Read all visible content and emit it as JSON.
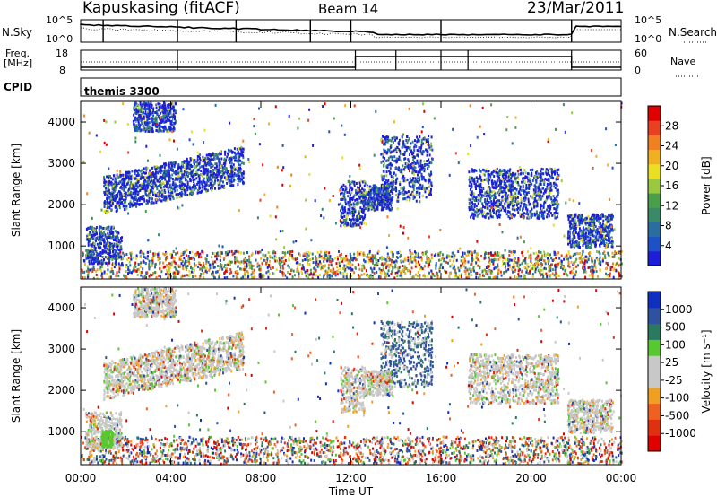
{
  "header": {
    "station": "Kapuskasing (fitACF)",
    "beam": "Beam 14",
    "date": "23/Mar/2011"
  },
  "top_panel": {
    "left_label": "N.Sky",
    "right_label": "N.Search",
    "left_ticks": [
      "10^5",
      "10^0"
    ],
    "right_ticks": [
      "10^5",
      "10^0"
    ]
  },
  "freq_panel": {
    "left_label_line1": "Freq.",
    "left_label_line2": "[MHz]",
    "left_ticks": [
      "18",
      "8"
    ],
    "right_label": "Nave",
    "right_ticks": [
      "60",
      "0"
    ]
  },
  "cpid_panel": {
    "label": "CPID",
    "value": "themis 3300"
  },
  "chart_data": [
    {
      "type": "heatmap",
      "name": "power",
      "ylabel": "Slant Range [km]",
      "yticks": [
        1000,
        2000,
        3000,
        4000
      ],
      "ylim": [
        200,
        4500
      ],
      "xlim": [
        0,
        24
      ],
      "colorbar": {
        "label": "Power [dB]",
        "ticks": [
          "4",
          "8",
          "12",
          "16",
          "20",
          "24",
          "28"
        ],
        "colors": [
          "#1e1ed8",
          "#1e50c8",
          "#2a6ea0",
          "#3a8a6a",
          "#4aa04a",
          "#9ac840",
          "#e8e020",
          "#f0b020",
          "#f08020",
          "#e84020",
          "#e00000"
        ]
      }
    },
    {
      "type": "heatmap",
      "name": "velocity",
      "ylabel": "Slant Range [km]",
      "xlabel": "Time UT",
      "yticks": [
        1000,
        2000,
        3000,
        4000
      ],
      "ylim": [
        200,
        4500
      ],
      "xlim": [
        0,
        24
      ],
      "xticks": [
        "00:00",
        "04:00",
        "08:00",
        "12:00",
        "16:00",
        "20:00",
        "00:00"
      ],
      "colorbar": {
        "label": "Velocity [m s⁻¹]",
        "ticks": [
          "1000",
          "500",
          "100",
          "25",
          "-25",
          "-100",
          "-500",
          "-1000"
        ],
        "colors": [
          "#1030c0",
          "#3050a0",
          "#2a7a60",
          "#58c830",
          "#c8c8c8",
          "#c8c8c8",
          "#f0a020",
          "#f06020",
          "#e03010",
          "#e00000"
        ]
      }
    }
  ]
}
